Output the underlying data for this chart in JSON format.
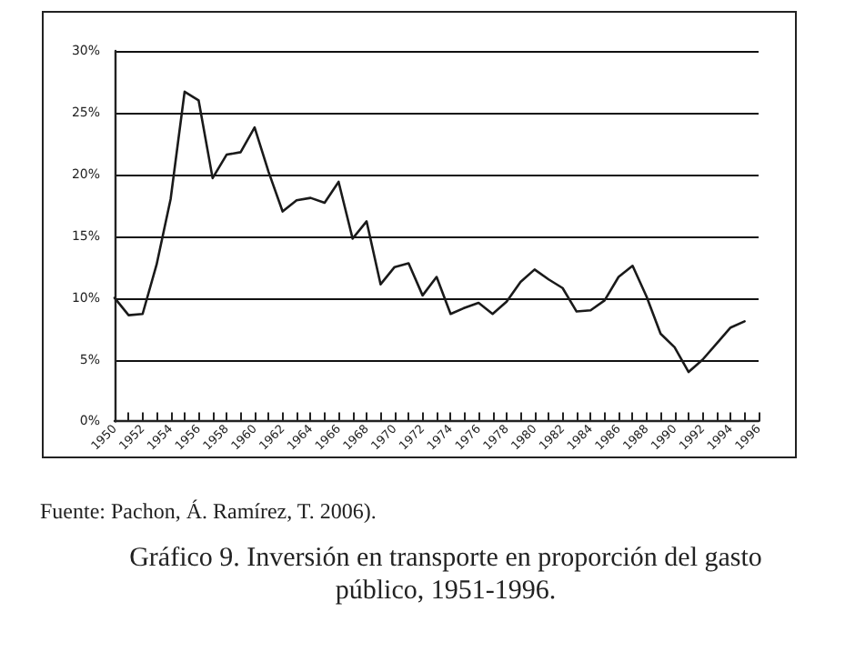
{
  "chart_data": {
    "type": "line",
    "title": "Gráfico 9. Inversión en transporte en proporción del gasto público, 1951-1996.",
    "annotations": [
      "Fuente: Pachon, Á. Ramírez, T. 2006)."
    ],
    "categories": [
      "1950",
      null,
      "1952",
      null,
      "1954",
      null,
      "1956",
      null,
      "1958",
      null,
      "1960",
      null,
      "1962",
      null,
      "1964",
      null,
      "1966",
      null,
      "1968",
      null,
      "1970",
      null,
      "1972",
      null,
      "1974",
      null,
      "1976",
      null,
      "1978",
      null,
      "1980",
      null,
      "1982",
      null,
      "1984",
      null,
      "1986",
      null,
      "1988",
      null,
      "1990",
      null,
      "1992",
      null,
      "1994",
      null,
      "1996"
    ],
    "series": [
      {
        "color": "#1a1a1a",
        "values": [
          10.0,
          8.6,
          8.7,
          12.7,
          18.0,
          26.7,
          26.0,
          19.7,
          21.6,
          21.8,
          23.8,
          20.2,
          17.0,
          17.9,
          18.1,
          17.7,
          19.4,
          14.8,
          16.2,
          11.1,
          12.5,
          12.8,
          10.2,
          11.7,
          8.7,
          9.2,
          9.6,
          8.7,
          9.7,
          11.3,
          12.3,
          11.5,
          10.8,
          8.9,
          9.0,
          9.8,
          11.7,
          12.6,
          10.1,
          7.1,
          6.0,
          4.0,
          5.0,
          6.3,
          7.6,
          8.1,
          null
        ]
      }
    ],
    "ylim": [
      0,
      30
    ],
    "yticks": [
      {
        "value": 0,
        "label": "0%"
      },
      {
        "value": 5,
        "label": "5%"
      },
      {
        "value": 10,
        "label": "10%"
      },
      {
        "value": 15,
        "label": "15%"
      },
      {
        "value": 20,
        "label": "20%"
      },
      {
        "value": 25,
        "label": "25%"
      },
      {
        "value": 30,
        "label": "30%"
      }
    ],
    "grid": "y",
    "marker": "none",
    "line_style": "solid"
  }
}
